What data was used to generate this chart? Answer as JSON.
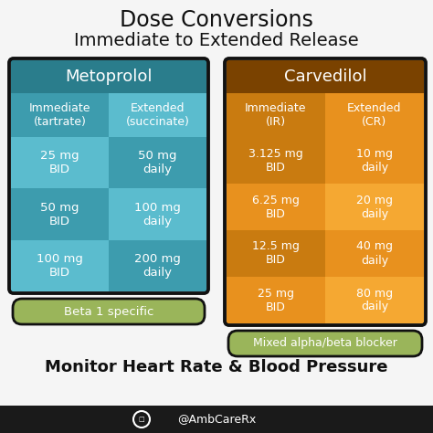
{
  "title_line1": "Dose Conversions",
  "title_line2": "Immediate to Extended Release",
  "footer": "Monitor Heart Rate & Blood Pressure",
  "credit": "@AmbCareRx",
  "metoprolol_header": "Metoprolol",
  "carvedilol_header": "Carvedilol",
  "metoprolol_col1_header": "Immediate\n(tartrate)",
  "metoprolol_col2_header": "Extended\n(succinate)",
  "carvedilol_col1_header": "Immediate\n(IR)",
  "carvedilol_col2_header": "Extended\n(CR)",
  "metoprolol_rows": [
    [
      "25 mg\nBID",
      "50 mg\ndaily"
    ],
    [
      "50 mg\nBID",
      "100 mg\ndaily"
    ],
    [
      "100 mg\nBID",
      "200 mg\ndaily"
    ]
  ],
  "carvedilol_rows": [
    [
      "3.125 mg\nBID",
      "10 mg\ndaily"
    ],
    [
      "6.25 mg\nBID",
      "20 mg\ndaily"
    ],
    [
      "12.5 mg\nBID",
      "40 mg\ndaily"
    ],
    [
      "25 mg\nBID",
      "80 mg\ndaily"
    ]
  ],
  "metoprolol_note": "Beta 1 specific",
  "carvedilol_note": "Mixed alpha/beta blocker",
  "color_teal_dark": "#2a7d8c",
  "color_teal_mid": "#3d9cae",
  "color_teal_light": "#5bbcce",
  "color_brown": "#7a4200",
  "color_orange_dark": "#c97b10",
  "color_orange_mid": "#e8911e",
  "color_orange_light": "#f5a832",
  "color_green": "#9ab55a",
  "color_green_border": "#7a9a40",
  "color_white": "#ffffff",
  "color_black": "#111111",
  "bg_color": "#f5f5f5"
}
